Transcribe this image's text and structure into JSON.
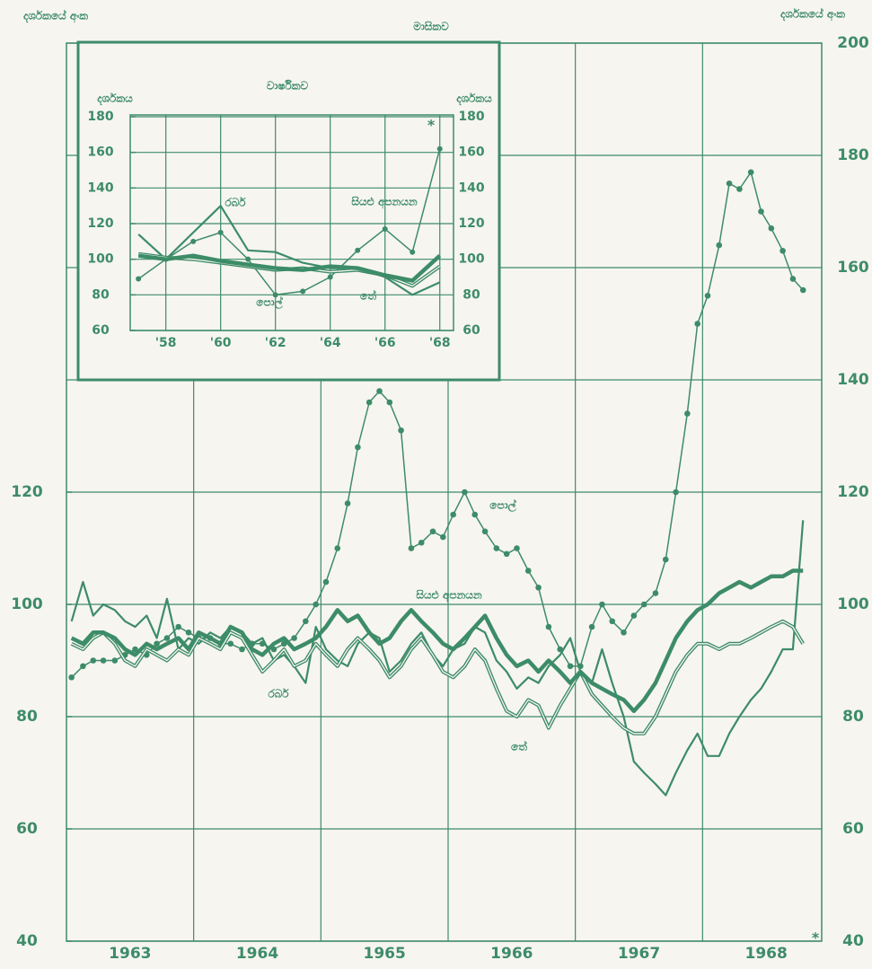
{
  "chart_data": [
    {
      "type": "line",
      "title": "මාසිකව",
      "ylabel": "දර්ශකයේ අංක",
      "y2label": "දර්ශකයේ අංක",
      "annotation": "*",
      "x": [
        1963.04,
        1963.13,
        1963.21,
        1963.29,
        1963.38,
        1963.46,
        1963.54,
        1963.63,
        1963.71,
        1963.79,
        1963.88,
        1963.96,
        1964.04,
        1964.13,
        1964.21,
        1964.29,
        1964.38,
        1964.46,
        1964.54,
        1964.63,
        1964.71,
        1964.79,
        1964.88,
        1964.96,
        1965.04,
        1965.13,
        1965.21,
        1965.29,
        1965.38,
        1965.46,
        1965.54,
        1965.63,
        1965.71,
        1965.79,
        1965.88,
        1965.96,
        1966.04,
        1966.13,
        1966.21,
        1966.29,
        1966.38,
        1966.46,
        1966.54,
        1966.63,
        1966.71,
        1966.79,
        1966.88,
        1966.96,
        1967.04,
        1967.13,
        1967.21,
        1967.29,
        1967.38,
        1967.46,
        1967.54,
        1967.63,
        1967.71,
        1967.79,
        1967.88,
        1967.96,
        1968.04,
        1968.13,
        1968.21,
        1968.29,
        1968.38,
        1968.46,
        1968.54,
        1968.63,
        1968.71,
        1968.79
      ],
      "xlim": [
        1963,
        1969
      ],
      "xticks": [
        {
          "value": 1963.5,
          "label": "1963"
        },
        {
          "value": 1964.5,
          "label": "1964"
        },
        {
          "value": 1965.5,
          "label": "1965"
        },
        {
          "value": 1966.5,
          "label": "1966"
        },
        {
          "value": 1967.5,
          "label": "1967"
        },
        {
          "value": 1968.5,
          "label": "1968"
        }
      ],
      "ylim": [
        40,
        200
      ],
      "yticks": [
        40,
        60,
        80,
        100,
        120
      ],
      "y2lim": [
        40,
        200
      ],
      "y2ticks": [
        40,
        60,
        80,
        100,
        120,
        140,
        160,
        180,
        200
      ],
      "grid": true,
      "color": "#3d8c68",
      "series": [
        {
          "name": "පොල්",
          "style": "dotted",
          "color": "#3d8c68",
          "values": [
            87,
            89,
            90,
            90,
            90,
            91,
            92,
            91,
            93,
            94,
            96,
            95,
            94,
            94,
            93,
            93,
            92,
            93,
            93,
            92,
            93,
            94,
            97,
            100,
            104,
            110,
            118,
            128,
            136,
            138,
            136,
            131,
            110,
            111,
            113,
            112,
            116,
            120,
            116,
            113,
            110,
            109,
            110,
            106,
            103,
            96,
            92,
            89,
            89,
            96,
            100,
            97,
            95,
            98,
            100,
            102,
            108,
            120,
            134,
            150,
            155,
            164,
            175,
            174,
            177,
            170,
            167,
            163,
            158,
            156
          ]
        },
        {
          "name": "රබර්",
          "style": "solid",
          "color": "#3d8c68",
          "values": [
            97,
            104,
            98,
            100,
            99,
            97,
            96,
            98,
            94,
            101,
            92,
            94,
            93,
            95,
            94,
            96,
            95,
            93,
            94,
            90,
            91,
            89,
            86,
            96,
            92,
            90,
            89,
            93,
            95,
            94,
            88,
            90,
            93,
            95,
            91,
            89,
            92,
            93,
            96,
            95,
            90,
            88,
            85,
            87,
            86,
            89,
            91,
            94,
            88,
            86,
            92,
            86,
            80,
            72,
            70,
            68,
            66,
            70,
            74,
            77,
            73,
            73,
            77,
            80,
            83,
            85,
            88,
            92,
            92,
            115
          ]
        },
        {
          "name": "තේ",
          "style": "double",
          "color": "#3d8c68",
          "values": [
            93,
            92,
            94,
            95,
            93,
            90,
            89,
            92,
            91,
            90,
            92,
            91,
            94,
            93,
            92,
            95,
            94,
            91,
            88,
            90,
            92,
            89,
            90,
            93,
            91,
            89,
            92,
            94,
            92,
            90,
            87,
            89,
            92,
            94,
            91,
            88,
            87,
            89,
            92,
            90,
            85,
            81,
            80,
            83,
            82,
            78,
            82,
            85,
            88,
            84,
            82,
            80,
            78,
            77,
            77,
            80,
            84,
            88,
            91,
            93,
            93,
            92,
            93,
            93,
            94,
            95,
            96,
            97,
            96,
            93
          ]
        },
        {
          "name": "සියළු අපනයන",
          "style": "thick",
          "color": "#3d8c68",
          "values": [
            94,
            93,
            95,
            95,
            94,
            92,
            91,
            93,
            92,
            93,
            94,
            92,
            95,
            94,
            93,
            96,
            95,
            92,
            91,
            93,
            94,
            92,
            93,
            94,
            96,
            99,
            97,
            98,
            95,
            93,
            94,
            97,
            99,
            97,
            95,
            93,
            92,
            94,
            96,
            98,
            94,
            91,
            89,
            90,
            88,
            90,
            88,
            86,
            88,
            86,
            85,
            84,
            83,
            81,
            83,
            86,
            90,
            94,
            97,
            99,
            100,
            102,
            103,
            104,
            103,
            104,
            105,
            105,
            106,
            106
          ]
        }
      ]
    },
    {
      "type": "line",
      "title": "වාර්ෂිකව",
      "ylabel": "දර්ශකය",
      "y2label": "දර්ශකය",
      "annotation": "*",
      "x": [
        1957,
        1958,
        1959,
        1960,
        1961,
        1962,
        1963,
        1964,
        1965,
        1966,
        1967,
        1968
      ],
      "xlim": [
        1956.7,
        1968.5
      ],
      "xticks": [
        {
          "value": 1958,
          "label": "'58"
        },
        {
          "value": 1960,
          "label": "'60"
        },
        {
          "value": 1962,
          "label": "'62"
        },
        {
          "value": 1964,
          "label": "'64"
        },
        {
          "value": 1966,
          "label": "'66"
        },
        {
          "value": 1968,
          "label": "'68"
        }
      ],
      "ylim": [
        60,
        180
      ],
      "yticks": [
        60,
        80,
        100,
        120,
        140,
        160,
        180
      ],
      "y2lim": [
        60,
        180
      ],
      "y2ticks": [
        60,
        80,
        100,
        120,
        140,
        160,
        180
      ],
      "grid": true,
      "color": "#3d8c68",
      "series": [
        {
          "name": "පොල්",
          "style": "dotted",
          "color": "#3d8c68",
          "values": [
            89,
            100,
            110,
            115,
            100,
            80,
            82,
            90,
            105,
            117,
            104,
            162
          ]
        },
        {
          "name": "රබර්",
          "style": "solid",
          "color": "#3d8c68",
          "values": [
            114,
            100,
            115,
            130,
            105,
            104,
            98,
            95,
            95,
            90,
            80,
            87
          ]
        },
        {
          "name": "තේ",
          "style": "double",
          "color": "#3d8c68",
          "values": [
            103,
            101,
            100,
            98,
            96,
            94,
            95,
            93,
            94,
            91,
            85,
            96
          ]
        },
        {
          "name": "සියළු අපනයන",
          "style": "thick",
          "color": "#3d8c68",
          "values": [
            102,
            100,
            102,
            99,
            97,
            95,
            94,
            96,
            95,
            91,
            88,
            102
          ]
        }
      ]
    }
  ]
}
